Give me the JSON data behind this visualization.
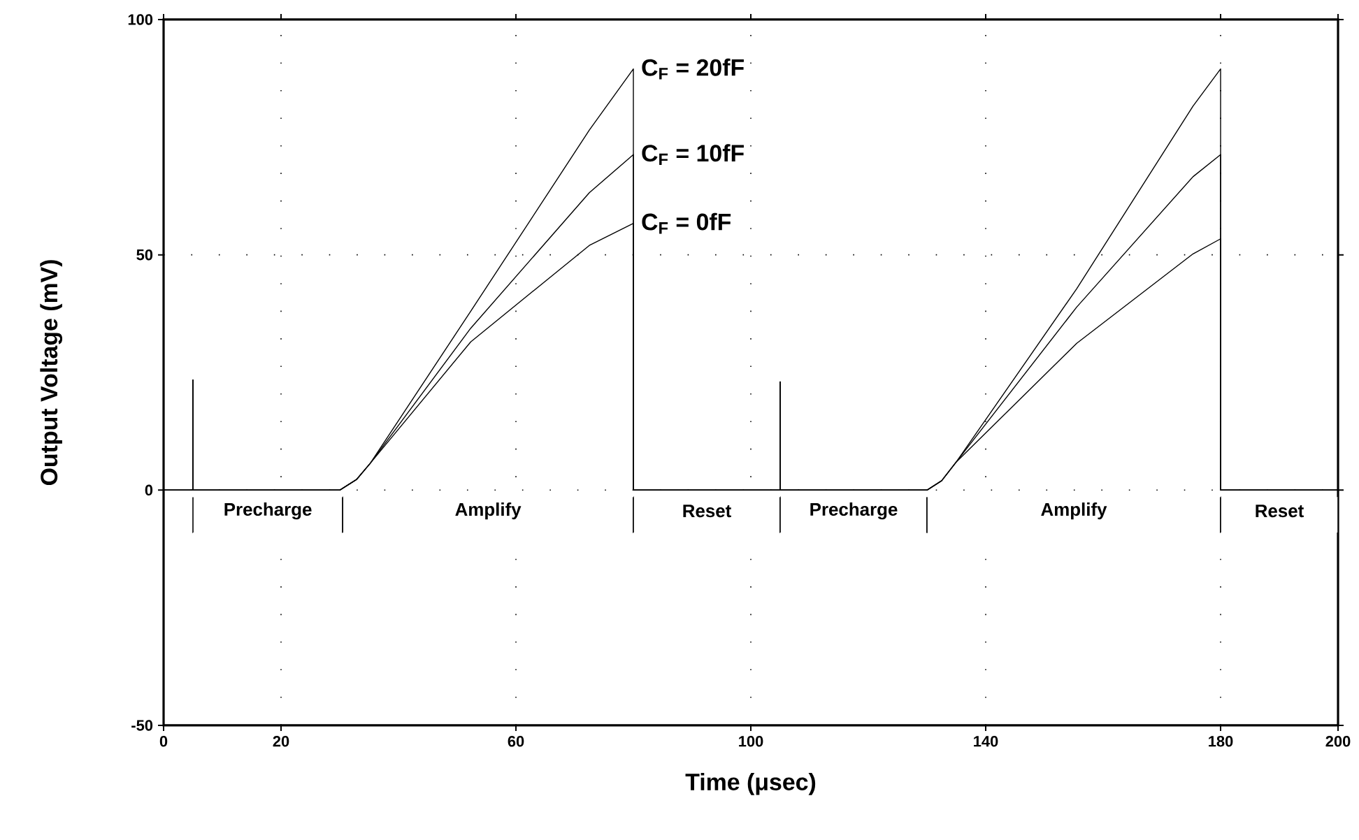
{
  "chart_data": {
    "type": "line",
    "xlabel": "Time (μsec)",
    "ylabel": "Output Voltage (mV)",
    "xlim": [
      0,
      200
    ],
    "ylim": [
      -50,
      100
    ],
    "xticks": [
      0,
      20,
      60,
      100,
      140,
      180,
      200
    ],
    "yticks": [
      -50,
      0,
      50,
      100
    ],
    "grid": true,
    "legend": false,
    "marker": "none",
    "line_style": "solid",
    "x": [
      0,
      5,
      5,
      5,
      30,
      32.9,
      35.2,
      52.3,
      72.5,
      80,
      80,
      105,
      105,
      105,
      130,
      132.5,
      135,
      155.5,
      175.3,
      180,
      180,
      200
    ],
    "series": [
      {
        "name": "C$_{F}$ = 20fF",
        "color": "#000000",
        "values": [
          0,
          0,
          23.4,
          0,
          0,
          2.3,
          5.7,
          38,
          76.5,
          89.5,
          0,
          0,
          23,
          0,
          0,
          2,
          6,
          42.8,
          81.6,
          89.5,
          0,
          0
        ]
      },
      {
        "name": "C$_{F}$ = 10fF",
        "color": "#000000",
        "values": [
          0,
          0,
          23.4,
          0,
          0,
          2.3,
          5.7,
          34.4,
          63.2,
          71.3,
          0,
          0,
          23,
          0,
          0,
          2,
          6,
          38.9,
          66.6,
          71.3,
          0,
          0
        ]
      },
      {
        "name": "C$_{F}$ = 0fF",
        "color": "#000000",
        "values": [
          0,
          0,
          23.4,
          0,
          0,
          2.3,
          5.7,
          31.5,
          52,
          56.7,
          0,
          0,
          23,
          0,
          0,
          2,
          6,
          31.2,
          50.2,
          53.4,
          0,
          0
        ]
      }
    ],
    "bands": [
      {
        "axis": "x",
        "from": 5,
        "to": 30.5,
        "label": "Precharge",
        "color": "#ffffff"
      },
      {
        "axis": "x",
        "from": 30.5,
        "to": 80,
        "label": "Amplify",
        "color": "#ffffff"
      },
      {
        "axis": "x",
        "from": 80,
        "to": 105,
        "label": "Reset",
        "color": "#ffffff"
      },
      {
        "axis": "x",
        "from": 105,
        "to": 130,
        "label": "Precharge",
        "color": "#ffffff"
      },
      {
        "axis": "x",
        "from": 130,
        "to": 180,
        "label": "Amplify",
        "color": "#ffffff"
      },
      {
        "axis": "x",
        "from": 180,
        "to": 200,
        "label": "Reset",
        "color": "#ffffff"
      }
    ]
  }
}
